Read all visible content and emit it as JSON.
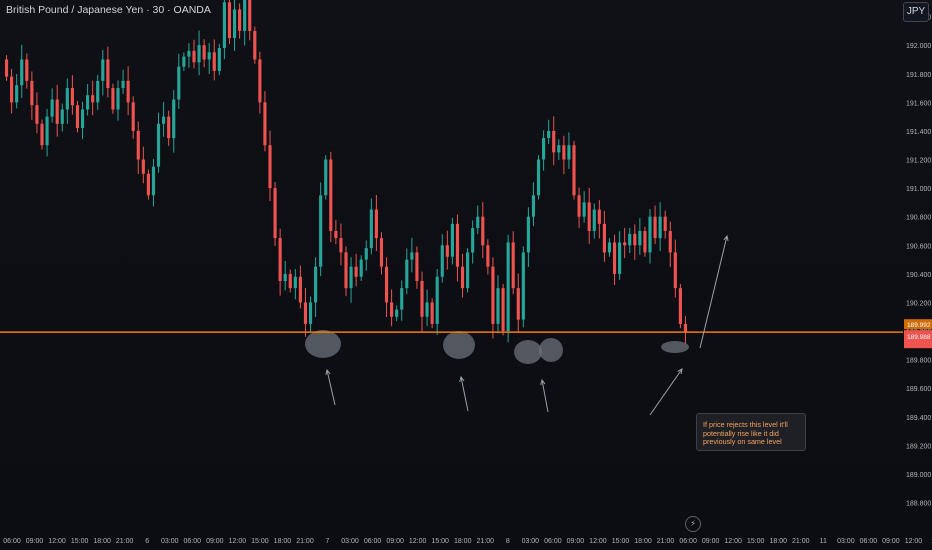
{
  "header": {
    "title": "British Pound / Japanese Yen · 30 · OANDA",
    "currency_button": "JPY"
  },
  "annotation": {
    "text": "If price rejects this level it'll potentially rise like it did previously on same level"
  },
  "colors": {
    "background": "#0f1116",
    "bull": "#26a69a",
    "bear": "#ef5350",
    "level_line": "#f57c00",
    "price_badge": "#ef5350",
    "highlight": "#6b7079",
    "arrow": "#9aa0ab",
    "annotation_text": "#f5a35c"
  },
  "icons": {
    "lightning": "lightning-icon",
    "lightning_glyph": "⚡"
  },
  "chart_data": {
    "type": "candlestick",
    "title": "British Pound / Japanese Yen · 30 · OANDA",
    "ylim": [
      188.72,
      192.33
    ],
    "y_ticks": [
      "192.200",
      "192.000",
      "191.800",
      "191.600",
      "191.400",
      "191.200",
      "191.000",
      "190.800",
      "190.600",
      "190.400",
      "190.200",
      "190.000",
      "189.800",
      "189.600",
      "189.400",
      "189.200",
      "189.000",
      "188.800"
    ],
    "x_ticks": [
      "06:00",
      "09:00",
      "12:00",
      "15:00",
      "18:00",
      "21:00",
      "6",
      "03:00",
      "06:00",
      "09:00",
      "12:00",
      "15:00",
      "18:00",
      "21:00",
      "7",
      "03:00",
      "06:00",
      "09:00",
      "12:00",
      "15:00",
      "18:00",
      "21:00",
      "8",
      "03:00",
      "06:00",
      "09:00",
      "12:00",
      "15:00",
      "18:00",
      "21:00",
      "06:00",
      "09:00",
      "12:00",
      "15:00",
      "18:00",
      "21:00",
      "11",
      "03:00",
      "06:00",
      "09:00",
      "12:00",
      "15:"
    ],
    "horizontal_level": 189.992,
    "current_price": 189.988,
    "price_badges": [
      "189.992",
      "189.988"
    ],
    "grid": false,
    "series": [
      {
        "type": "candle",
        "points": [
          [
            191.9,
            191.78
          ],
          [
            191.78,
            191.6
          ],
          [
            191.6,
            191.72
          ],
          [
            191.72,
            191.9
          ],
          [
            191.9,
            191.75
          ],
          [
            191.75,
            191.58
          ],
          [
            191.58,
            191.45
          ],
          [
            191.45,
            191.3
          ],
          [
            191.3,
            191.5
          ],
          [
            191.5,
            191.62
          ],
          [
            191.62,
            191.45
          ],
          [
            191.45,
            191.55
          ],
          [
            191.55,
            191.7
          ],
          [
            191.7,
            191.58
          ],
          [
            191.58,
            191.42
          ],
          [
            191.42,
            191.55
          ],
          [
            191.55,
            191.65
          ],
          [
            191.65,
            191.6
          ],
          [
            191.6,
            191.75
          ],
          [
            191.75,
            191.9
          ],
          [
            191.9,
            191.7
          ],
          [
            191.7,
            191.55
          ],
          [
            191.55,
            191.7
          ],
          [
            191.7,
            191.75
          ],
          [
            191.75,
            191.6
          ],
          [
            191.6,
            191.4
          ],
          [
            191.4,
            191.2
          ],
          [
            191.2,
            191.1
          ],
          [
            191.1,
            190.95
          ],
          [
            190.95,
            191.15
          ],
          [
            191.15,
            191.45
          ],
          [
            191.45,
            191.5
          ],
          [
            191.5,
            191.35
          ],
          [
            191.35,
            191.62
          ],
          [
            191.62,
            191.85
          ],
          [
            191.85,
            191.92
          ],
          [
            191.92,
            191.96
          ],
          [
            191.96,
            191.88
          ],
          [
            191.88,
            192.0
          ],
          [
            192.0,
            191.9
          ],
          [
            191.9,
            191.95
          ],
          [
            191.95,
            191.82
          ],
          [
            191.82,
            191.98
          ],
          [
            191.98,
            192.3
          ],
          [
            192.3,
            192.05
          ],
          [
            192.05,
            192.25
          ],
          [
            192.25,
            192.1
          ],
          [
            192.1,
            192.33
          ],
          [
            192.33,
            192.1
          ],
          [
            192.1,
            191.9
          ],
          [
            191.9,
            191.6
          ],
          [
            191.6,
            191.3
          ],
          [
            191.3,
            191.0
          ],
          [
            191.0,
            190.65
          ],
          [
            190.65,
            190.35
          ],
          [
            190.35,
            190.4
          ],
          [
            190.4,
            190.3
          ],
          [
            190.3,
            190.38
          ],
          [
            190.38,
            190.2
          ],
          [
            190.2,
            190.05
          ],
          [
            190.05,
            190.2
          ],
          [
            190.2,
            190.45
          ],
          [
            190.45,
            190.95
          ],
          [
            190.95,
            191.2
          ],
          [
            191.2,
            190.7
          ],
          [
            190.7,
            190.65
          ],
          [
            190.65,
            190.55
          ],
          [
            190.55,
            190.3
          ],
          [
            190.3,
            190.45
          ],
          [
            190.45,
            190.38
          ],
          [
            190.38,
            190.5
          ],
          [
            190.5,
            190.58
          ],
          [
            190.58,
            190.85
          ],
          [
            190.85,
            190.65
          ],
          [
            190.65,
            190.45
          ],
          [
            190.45,
            190.2
          ],
          [
            190.2,
            190.1
          ],
          [
            190.1,
            190.15
          ],
          [
            190.15,
            190.3
          ],
          [
            190.3,
            190.5
          ],
          [
            190.5,
            190.55
          ],
          [
            190.55,
            190.35
          ],
          [
            190.35,
            190.1
          ],
          [
            190.1,
            190.2
          ],
          [
            190.2,
            190.05
          ],
          [
            190.05,
            190.38
          ],
          [
            190.38,
            190.6
          ],
          [
            190.6,
            190.52
          ],
          [
            190.52,
            190.75
          ],
          [
            190.75,
            190.45
          ],
          [
            190.45,
            190.3
          ],
          [
            190.3,
            190.55
          ],
          [
            190.55,
            190.72
          ],
          [
            190.72,
            190.8
          ],
          [
            190.8,
            190.6
          ],
          [
            190.6,
            190.45
          ],
          [
            190.45,
            190.05
          ],
          [
            190.05,
            190.3
          ],
          [
            190.3,
            190.0
          ],
          [
            190.0,
            190.62
          ],
          [
            190.62,
            190.3
          ],
          [
            190.3,
            190.08
          ],
          [
            190.08,
            190.55
          ],
          [
            190.55,
            190.8
          ],
          [
            190.8,
            190.95
          ],
          [
            190.95,
            191.2
          ],
          [
            191.2,
            191.35
          ],
          [
            191.35,
            191.4
          ],
          [
            191.4,
            191.25
          ],
          [
            191.25,
            191.3
          ],
          [
            191.3,
            191.2
          ],
          [
            191.2,
            191.3
          ],
          [
            191.3,
            190.95
          ],
          [
            190.95,
            190.8
          ],
          [
            190.8,
            190.9
          ],
          [
            190.9,
            190.7
          ],
          [
            190.7,
            190.85
          ],
          [
            190.85,
            190.75
          ],
          [
            190.75,
            190.55
          ],
          [
            190.55,
            190.62
          ],
          [
            190.62,
            190.4
          ],
          [
            190.4,
            190.62
          ],
          [
            190.62,
            190.6
          ],
          [
            190.6,
            190.68
          ],
          [
            190.68,
            190.6
          ],
          [
            190.6,
            190.7
          ],
          [
            190.7,
            190.55
          ],
          [
            190.55,
            190.8
          ],
          [
            190.8,
            190.65
          ],
          [
            190.65,
            190.8
          ],
          [
            190.8,
            190.7
          ],
          [
            190.7,
            190.55
          ],
          [
            190.55,
            190.3
          ],
          [
            190.3,
            190.05
          ],
          [
            190.05,
            189.99
          ]
        ]
      }
    ]
  }
}
